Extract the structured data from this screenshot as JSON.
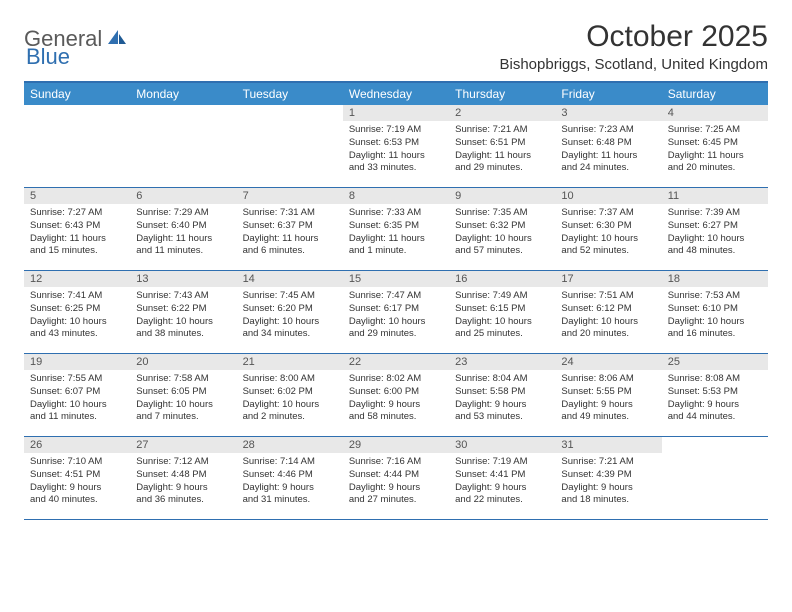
{
  "logo": {
    "text1": "General",
    "text2": "Blue"
  },
  "title": "October 2025",
  "location": "Bishopbriggs, Scotland, United Kingdom",
  "colors": {
    "header_bg": "#3a8bc9",
    "border": "#2f6fb0",
    "daynum_bg": "#e8e8e8",
    "text": "#333333",
    "logo_gray": "#5a5a5a",
    "logo_blue": "#2f6fb0"
  },
  "day_names": [
    "Sunday",
    "Monday",
    "Tuesday",
    "Wednesday",
    "Thursday",
    "Friday",
    "Saturday"
  ],
  "weeks": [
    [
      {
        "empty": true
      },
      {
        "empty": true
      },
      {
        "empty": true
      },
      {
        "num": "1",
        "sunrise": "7:19 AM",
        "sunset": "6:53 PM",
        "dayh": "11",
        "daym": "33"
      },
      {
        "num": "2",
        "sunrise": "7:21 AM",
        "sunset": "6:51 PM",
        "dayh": "11",
        "daym": "29"
      },
      {
        "num": "3",
        "sunrise": "7:23 AM",
        "sunset": "6:48 PM",
        "dayh": "11",
        "daym": "24"
      },
      {
        "num": "4",
        "sunrise": "7:25 AM",
        "sunset": "6:45 PM",
        "dayh": "11",
        "daym": "20"
      }
    ],
    [
      {
        "num": "5",
        "sunrise": "7:27 AM",
        "sunset": "6:43 PM",
        "dayh": "11",
        "daym": "15"
      },
      {
        "num": "6",
        "sunrise": "7:29 AM",
        "sunset": "6:40 PM",
        "dayh": "11",
        "daym": "11"
      },
      {
        "num": "7",
        "sunrise": "7:31 AM",
        "sunset": "6:37 PM",
        "dayh": "11",
        "daym": "6"
      },
      {
        "num": "8",
        "sunrise": "7:33 AM",
        "sunset": "6:35 PM",
        "dayh": "11",
        "daym": "1"
      },
      {
        "num": "9",
        "sunrise": "7:35 AM",
        "sunset": "6:32 PM",
        "dayh": "10",
        "daym": "57"
      },
      {
        "num": "10",
        "sunrise": "7:37 AM",
        "sunset": "6:30 PM",
        "dayh": "10",
        "daym": "52"
      },
      {
        "num": "11",
        "sunrise": "7:39 AM",
        "sunset": "6:27 PM",
        "dayh": "10",
        "daym": "48"
      }
    ],
    [
      {
        "num": "12",
        "sunrise": "7:41 AM",
        "sunset": "6:25 PM",
        "dayh": "10",
        "daym": "43"
      },
      {
        "num": "13",
        "sunrise": "7:43 AM",
        "sunset": "6:22 PM",
        "dayh": "10",
        "daym": "38"
      },
      {
        "num": "14",
        "sunrise": "7:45 AM",
        "sunset": "6:20 PM",
        "dayh": "10",
        "daym": "34"
      },
      {
        "num": "15",
        "sunrise": "7:47 AM",
        "sunset": "6:17 PM",
        "dayh": "10",
        "daym": "29"
      },
      {
        "num": "16",
        "sunrise": "7:49 AM",
        "sunset": "6:15 PM",
        "dayh": "10",
        "daym": "25"
      },
      {
        "num": "17",
        "sunrise": "7:51 AM",
        "sunset": "6:12 PM",
        "dayh": "10",
        "daym": "20"
      },
      {
        "num": "18",
        "sunrise": "7:53 AM",
        "sunset": "6:10 PM",
        "dayh": "10",
        "daym": "16"
      }
    ],
    [
      {
        "num": "19",
        "sunrise": "7:55 AM",
        "sunset": "6:07 PM",
        "dayh": "10",
        "daym": "11"
      },
      {
        "num": "20",
        "sunrise": "7:58 AM",
        "sunset": "6:05 PM",
        "dayh": "10",
        "daym": "7"
      },
      {
        "num": "21",
        "sunrise": "8:00 AM",
        "sunset": "6:02 PM",
        "dayh": "10",
        "daym": "2"
      },
      {
        "num": "22",
        "sunrise": "8:02 AM",
        "sunset": "6:00 PM",
        "dayh": "9",
        "daym": "58"
      },
      {
        "num": "23",
        "sunrise": "8:04 AM",
        "sunset": "5:58 PM",
        "dayh": "9",
        "daym": "53"
      },
      {
        "num": "24",
        "sunrise": "8:06 AM",
        "sunset": "5:55 PM",
        "dayh": "9",
        "daym": "49"
      },
      {
        "num": "25",
        "sunrise": "8:08 AM",
        "sunset": "5:53 PM",
        "dayh": "9",
        "daym": "44"
      }
    ],
    [
      {
        "num": "26",
        "sunrise": "7:10 AM",
        "sunset": "4:51 PM",
        "dayh": "9",
        "daym": "40"
      },
      {
        "num": "27",
        "sunrise": "7:12 AM",
        "sunset": "4:48 PM",
        "dayh": "9",
        "daym": "36"
      },
      {
        "num": "28",
        "sunrise": "7:14 AM",
        "sunset": "4:46 PM",
        "dayh": "9",
        "daym": "31"
      },
      {
        "num": "29",
        "sunrise": "7:16 AM",
        "sunset": "4:44 PM",
        "dayh": "9",
        "daym": "27"
      },
      {
        "num": "30",
        "sunrise": "7:19 AM",
        "sunset": "4:41 PM",
        "dayh": "9",
        "daym": "22"
      },
      {
        "num": "31",
        "sunrise": "7:21 AM",
        "sunset": "4:39 PM",
        "dayh": "9",
        "daym": "18"
      },
      {
        "empty": true
      }
    ]
  ],
  "labels": {
    "sunrise": "Sunrise:",
    "sunset": "Sunset:",
    "daylight": "Daylight:",
    "hours": "hours",
    "and": "and",
    "minute": "minute.",
    "minutes": "minutes."
  }
}
